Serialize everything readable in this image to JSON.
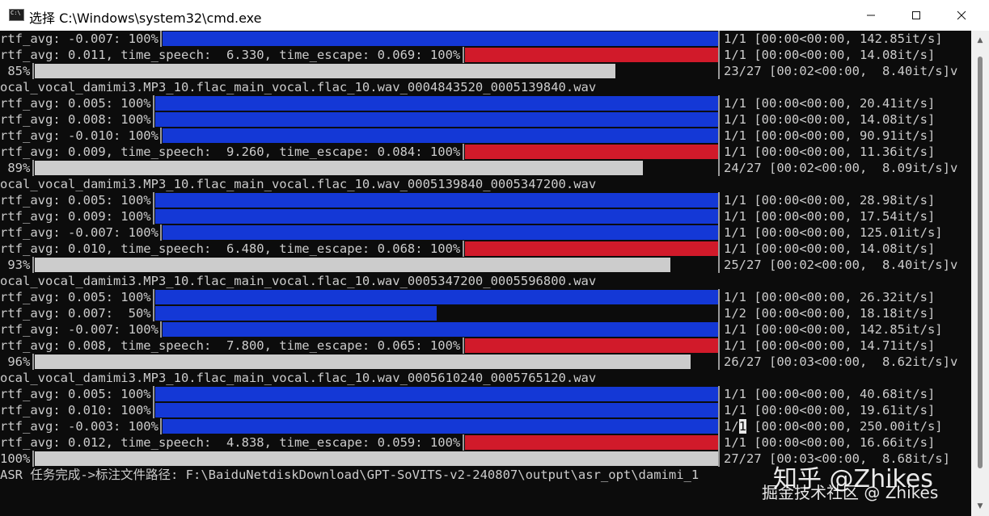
{
  "window": {
    "title": "选择 C:\\Windows\\system32\\cmd.exe",
    "minimize_glyph": "—",
    "maximize_glyph": "☐",
    "close_glyph": "✕"
  },
  "colors": {
    "console_bg": "#0c0c0c",
    "text": "#cccccc",
    "bar_blue": "#1438d6",
    "bar_red": "#d11a2a",
    "bar_gray": "#cccccc"
  },
  "console": {
    "lines": [
      {
        "kind": "bar",
        "color": "blue",
        "left": "rtf_avg: -0.007: 100%",
        "right": "1/1 [00:00<00:00, 142.85it/s]",
        "progress": 1.0
      },
      {
        "kind": "bar",
        "color": "red",
        "left": "rtf_avg: 0.011, time_speech:  6.330, time_escape: 0.069: 100%",
        "right": "1/1 [00:00<00:00, 14.08it/s]",
        "progress": 1.0
      },
      {
        "kind": "bar",
        "color": "gray",
        "left": " 85%",
        "right": "23/27 [00:02<00:00,  8.40it/s]v",
        "progress": 0.85
      },
      {
        "kind": "text",
        "text": "ocal_vocal_damimi3.MP3_10.flac_main_vocal.flac_10.wav_0004843520_0005139840.wav"
      },
      {
        "kind": "bar",
        "color": "blue",
        "left": "rtf_avg: 0.005: 100%",
        "right": "1/1 [00:00<00:00, 20.41it/s]",
        "progress": 1.0
      },
      {
        "kind": "bar",
        "color": "blue",
        "left": "rtf_avg: 0.008: 100%",
        "right": "1/1 [00:00<00:00, 14.08it/s]",
        "progress": 1.0
      },
      {
        "kind": "bar",
        "color": "blue",
        "left": "rtf_avg: -0.010: 100%",
        "right": "1/1 [00:00<00:00, 90.91it/s]",
        "progress": 1.0
      },
      {
        "kind": "bar",
        "color": "red",
        "left": "rtf_avg: 0.009, time_speech:  9.260, time_escape: 0.084: 100%",
        "right": "1/1 [00:00<00:00, 11.36it/s]",
        "progress": 1.0
      },
      {
        "kind": "bar",
        "color": "gray",
        "left": " 89%",
        "right": "24/27 [00:02<00:00,  8.09it/s]v",
        "progress": 0.89
      },
      {
        "kind": "text",
        "text": "ocal_vocal_damimi3.MP3_10.flac_main_vocal.flac_10.wav_0005139840_0005347200.wav"
      },
      {
        "kind": "bar",
        "color": "blue",
        "left": "rtf_avg: 0.005: 100%",
        "right": "1/1 [00:00<00:00, 28.98it/s]",
        "progress": 1.0
      },
      {
        "kind": "bar",
        "color": "blue",
        "left": "rtf_avg: 0.009: 100%",
        "right": "1/1 [00:00<00:00, 17.54it/s]",
        "progress": 1.0
      },
      {
        "kind": "bar",
        "color": "blue",
        "left": "rtf_avg: -0.007: 100%",
        "right": "1/1 [00:00<00:00, 125.01it/s]",
        "progress": 1.0
      },
      {
        "kind": "bar",
        "color": "red",
        "left": "rtf_avg: 0.010, time_speech:  6.480, time_escape: 0.068: 100%",
        "right": "1/1 [00:00<00:00, 14.08it/s]",
        "progress": 1.0
      },
      {
        "kind": "bar",
        "color": "gray",
        "left": " 93%",
        "right": "25/27 [00:02<00:00,  8.40it/s]v",
        "progress": 0.93
      },
      {
        "kind": "text",
        "text": "ocal_vocal_damimi3.MP3_10.flac_main_vocal.flac_10.wav_0005347200_0005596800.wav"
      },
      {
        "kind": "bar",
        "color": "blue",
        "left": "rtf_avg: 0.005: 100%",
        "right": "1/1 [00:00<00:00, 26.32it/s]",
        "progress": 1.0
      },
      {
        "kind": "bar",
        "color": "blue",
        "left": "rtf_avg: 0.007:  50%",
        "right": "1/2 [00:00<00:00, 18.18it/s]",
        "progress": 0.5
      },
      {
        "kind": "bar",
        "color": "blue",
        "left": "rtf_avg: -0.007: 100%",
        "right": "1/1 [00:00<00:00, 142.85it/s]",
        "progress": 1.0
      },
      {
        "kind": "bar",
        "color": "red",
        "left": "rtf_avg: 0.008, time_speech:  7.800, time_escape: 0.065: 100%",
        "right": "1/1 [00:00<00:00, 14.71it/s]",
        "progress": 1.0
      },
      {
        "kind": "bar",
        "color": "gray",
        "left": " 96%",
        "right": "26/27 [00:03<00:00,  8.62it/s]v",
        "progress": 0.96
      },
      {
        "kind": "text",
        "text": "ocal_vocal_damimi3.MP3_10.flac_main_vocal.flac_10.wav_0005610240_0005765120.wav"
      },
      {
        "kind": "bar",
        "color": "blue",
        "left": "rtf_avg: 0.005: 100%",
        "right": "1/1 [00:00<00:00, 40.68it/s]",
        "progress": 1.0
      },
      {
        "kind": "bar",
        "color": "blue",
        "left": "rtf_avg: 0.010: 100%",
        "right": "1/1 [00:00<00:00, 19.61it/s]",
        "progress": 1.0
      },
      {
        "kind": "bar",
        "color": "blue",
        "left": "rtf_avg: -0.003: 100%",
        "right": "1/1 [00:00<00:00, 250.00it/s]",
        "progress": 1.0,
        "cursor": true
      },
      {
        "kind": "bar",
        "color": "red",
        "left": "rtf_avg: 0.012, time_speech:  4.838, time_escape: 0.059: 100%",
        "right": "1/1 [00:00<00:00, 16.66it/s]",
        "progress": 1.0
      },
      {
        "kind": "bar",
        "color": "gray",
        "left": "100%",
        "right": "27/27 [00:03<00:00,  8.68it/s]",
        "progress": 1.0
      },
      {
        "kind": "text",
        "text": "ASR 任务完成->标注文件路径: F:\\BaiduNetdiskDownload\\GPT-SoVITS-v2-240807\\output\\asr_opt\\damimi_1"
      }
    ]
  },
  "watermark": {
    "line1": "知乎 @Zhikes",
    "line2": "掘金技术社区 @ Zhikes"
  }
}
